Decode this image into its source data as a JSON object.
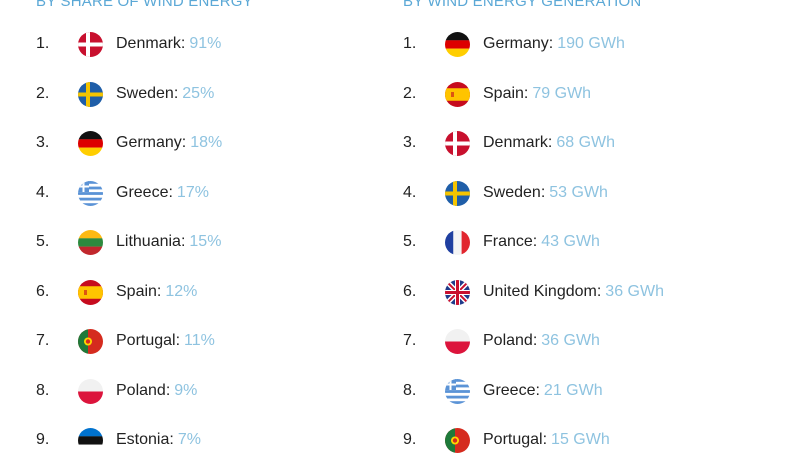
{
  "left": {
    "title": "BY SHARE OF WIND ENERGY",
    "items": [
      {
        "rank": "1.",
        "country": "Denmark:",
        "value": "91%",
        "flag": "denmark-flag-icon"
      },
      {
        "rank": "2.",
        "country": "Sweden:",
        "value": "25%",
        "flag": "sweden-flag-icon"
      },
      {
        "rank": "3.",
        "country": "Germany:",
        "value": "18%",
        "flag": "germany-flag-icon"
      },
      {
        "rank": "4.",
        "country": "Greece:",
        "value": "17%",
        "flag": "greece-flag-icon"
      },
      {
        "rank": "5.",
        "country": "Lithuania:",
        "value": "15%",
        "flag": "lithuania-flag-icon"
      },
      {
        "rank": "6.",
        "country": "Spain:",
        "value": "12%",
        "flag": "spain-flag-icon"
      },
      {
        "rank": "7.",
        "country": "Portugal:",
        "value": "11%",
        "flag": "portugal-flag-icon"
      },
      {
        "rank": "8.",
        "country": "Poland:",
        "value": "9%",
        "flag": "poland-flag-icon"
      },
      {
        "rank": "9.",
        "country": "Estonia:",
        "value": "7%",
        "flag": "estonia-flag-icon"
      }
    ]
  },
  "right": {
    "title": "BY WIND ENERGY GENERATION",
    "items": [
      {
        "rank": "1.",
        "country": "Germany:",
        "value": "190 GWh",
        "flag": "germany-flag-icon"
      },
      {
        "rank": "2.",
        "country": "Spain:",
        "value": "79 GWh",
        "flag": "spain-flag-icon"
      },
      {
        "rank": "3.",
        "country": "Denmark:",
        "value": "68 GWh",
        "flag": "denmark-flag-icon"
      },
      {
        "rank": "4.",
        "country": "Sweden:",
        "value": "53 GWh",
        "flag": "sweden-flag-icon"
      },
      {
        "rank": "5.",
        "country": "France:",
        "value": "43 GWh",
        "flag": "france-flag-icon"
      },
      {
        "rank": "6.",
        "country": "United Kingdom:",
        "value": "36 GWh",
        "flag": "united-kingdom-flag-icon"
      },
      {
        "rank": "7.",
        "country": "Poland:",
        "value": "36 GWh",
        "flag": "poland-flag-icon"
      },
      {
        "rank": "8.",
        "country": "Greece:",
        "value": "21 GWh",
        "flag": "greece-flag-icon"
      },
      {
        "rank": "9.",
        "country": "Portugal:",
        "value": "15 GWh",
        "flag": "portugal-flag-icon"
      }
    ]
  },
  "colors": {
    "title": "#5ba8d6",
    "value": "#8ec3e0",
    "text": "#222222"
  }
}
